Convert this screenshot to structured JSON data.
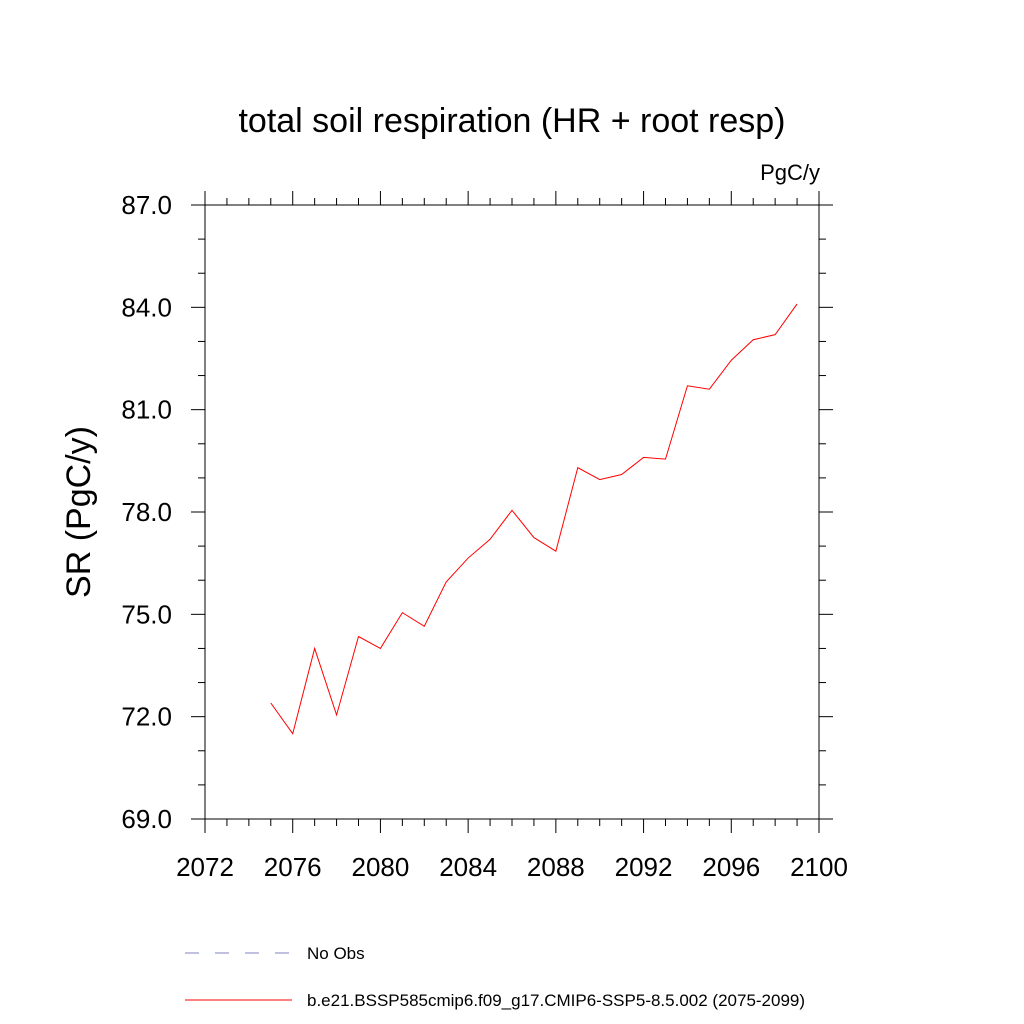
{
  "chart_data": {
    "type": "line",
    "title": "total soil respiration (HR + root resp)",
    "units_label": "PgC/y",
    "xlabel": "",
    "ylabel": "SR  (PgC/y)",
    "xlim": [
      2072,
      2100
    ],
    "ylim": [
      69.0,
      87.0
    ],
    "x_ticks": [
      2072,
      2076,
      2080,
      2084,
      2088,
      2092,
      2096,
      2100
    ],
    "x_tick_labels": [
      "2072",
      "2076",
      "2080",
      "2084",
      "2088",
      "2092",
      "2096",
      "2100"
    ],
    "y_ticks": [
      69.0,
      72.0,
      75.0,
      78.0,
      81.0,
      84.0,
      87.0
    ],
    "y_tick_labels": [
      "69.0",
      "72.0",
      "75.0",
      "78.0",
      "81.0",
      "84.0",
      "87.0"
    ],
    "x_minor_step": 1,
    "y_minor_step": 1,
    "series": [
      {
        "name": "b.e21.BSSP585cmip6.f09_g17.CMIP6-SSP5-8.5.002 (2075-2099)",
        "color": "#ff0000",
        "dash": "solid",
        "x": [
          2075,
          2076,
          2077,
          2078,
          2079,
          2080,
          2081,
          2082,
          2083,
          2084,
          2085,
          2086,
          2087,
          2088,
          2089,
          2090,
          2091,
          2092,
          2093,
          2094,
          2095,
          2096,
          2097,
          2098,
          2099
        ],
        "values": [
          72.4,
          71.5,
          74.0,
          72.05,
          74.35,
          74.0,
          75.05,
          74.65,
          75.95,
          76.65,
          77.2,
          78.05,
          77.25,
          76.85,
          79.3,
          78.95,
          79.1,
          79.6,
          79.55,
          81.7,
          81.6,
          82.45,
          83.05,
          83.2,
          84.1
        ]
      }
    ],
    "legend": [
      {
        "label": "No Obs",
        "color": "#8080c0",
        "dash": "dashed"
      },
      {
        "label": "b.e21.BSSP585cmip6.f09_g17.CMIP6-SSP5-8.5.002 (2075-2099)",
        "color": "#ff0000",
        "dash": "solid"
      }
    ],
    "legend_placement": "bottom"
  }
}
